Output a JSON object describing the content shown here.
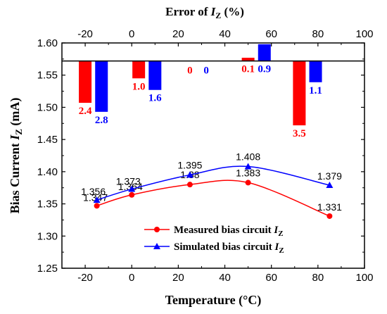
{
  "chart_data": {
    "type": "line+bar",
    "ylabel_main": "Bias Current ",
    "ylabel_var": "I",
    "ylabel_sub": "Z",
    "ylabel_unit": " (mA)",
    "xlabel_bottom": "Temperature (°C)",
    "xlabel_top_main": "Error of ",
    "xlabel_top_var": "I",
    "xlabel_top_sub": "Z",
    "xlabel_top_unit": " (%)",
    "x_bottom_range": [
      -30,
      100
    ],
    "x_bottom_ticks": [
      "-20",
      "0",
      "20",
      "40",
      "60",
      "80",
      "100"
    ],
    "x_top_range": [
      -30,
      100
    ],
    "x_top_ticks": [
      "-20",
      "0",
      "20",
      "40",
      "60",
      "80",
      "100"
    ],
    "y_range": [
      1.25,
      1.6
    ],
    "y_ticks": [
      "1.25",
      "1.30",
      "1.35",
      "1.40",
      "1.45",
      "1.50",
      "1.55",
      "1.60"
    ],
    "bar_baseline": 1.572,
    "colors": {
      "measured": "#ff0000",
      "simulated": "#0000ff"
    },
    "series": [
      {
        "name": "Measured bias circuit ",
        "name_var": "I",
        "name_sub": "Z",
        "marker": "circle",
        "x": [
          -15,
          0,
          25,
          50,
          85
        ],
        "y": [
          1.347,
          1.364,
          1.38,
          1.383,
          1.331
        ],
        "labels": [
          "1.347",
          "1.364",
          "1.38",
          "1.383",
          "1.331"
        ]
      },
      {
        "name": "Simulated bias circuit ",
        "name_var": "I",
        "name_sub": "Z",
        "marker": "triangle",
        "x": [
          -15,
          0,
          25,
          50,
          85
        ],
        "y": [
          1.356,
          1.373,
          1.395,
          1.408,
          1.379
        ],
        "labels": [
          "1.356",
          "1.373",
          "1.395",
          "1.408",
          "1.379"
        ]
      }
    ],
    "error_bars": [
      {
        "series": "measured",
        "x_center": -20,
        "value": 2.4,
        "label": "2.4",
        "bar_end": 1.507
      },
      {
        "series": "simulated",
        "x_center": -13,
        "value": 2.8,
        "label": "2.8",
        "bar_end": 1.493
      },
      {
        "series": "measured",
        "x_center": 3,
        "value": 1.0,
        "label": "1.0",
        "bar_end": 1.545
      },
      {
        "series": "simulated",
        "x_center": 10,
        "value": 1.6,
        "label": "1.6",
        "bar_end": 1.527
      },
      {
        "series": "measured",
        "x_center": 25,
        "value": 0,
        "label": "0",
        "bar_end": 1.572
      },
      {
        "series": "simulated",
        "x_center": 32,
        "value": 0,
        "label": "0",
        "bar_end": 1.572
      },
      {
        "series": "measured",
        "x_center": 50,
        "value": 0.1,
        "label": "0.1",
        "bar_end": 1.577
      },
      {
        "series": "simulated",
        "x_center": 57,
        "value": 0.9,
        "label": "0.9",
        "bar_end": 1.598
      },
      {
        "series": "measured",
        "x_center": 72,
        "value": 3.5,
        "label": "3.5",
        "bar_end": 1.472
      },
      {
        "series": "simulated",
        "x_center": 79,
        "value": 1.1,
        "label": "1.1",
        "bar_end": 1.539
      }
    ],
    "legend_position": "bottom-center",
    "grid": false
  }
}
